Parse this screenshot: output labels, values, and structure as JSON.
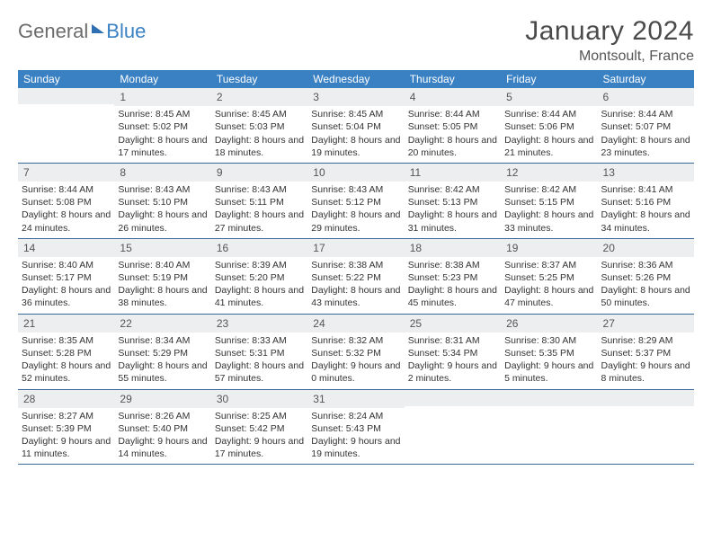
{
  "logo": {
    "text1": "General",
    "text2": "Blue"
  },
  "title": "January 2024",
  "location": "Montsoult, France",
  "colors": {
    "header_bar": "#3a81c4",
    "daynum_bg": "#eceef0",
    "week_border": "#3a6a9a",
    "text": "#333333",
    "title_text": "#4a4a4a"
  },
  "dow": [
    "Sunday",
    "Monday",
    "Tuesday",
    "Wednesday",
    "Thursday",
    "Friday",
    "Saturday"
  ],
  "weeks": [
    [
      {
        "n": "",
        "lines": []
      },
      {
        "n": "1",
        "lines": [
          "Sunrise: 8:45 AM",
          "Sunset: 5:02 PM",
          "Daylight: 8 hours and 17 minutes."
        ]
      },
      {
        "n": "2",
        "lines": [
          "Sunrise: 8:45 AM",
          "Sunset: 5:03 PM",
          "Daylight: 8 hours and 18 minutes."
        ]
      },
      {
        "n": "3",
        "lines": [
          "Sunrise: 8:45 AM",
          "Sunset: 5:04 PM",
          "Daylight: 8 hours and 19 minutes."
        ]
      },
      {
        "n": "4",
        "lines": [
          "Sunrise: 8:44 AM",
          "Sunset: 5:05 PM",
          "Daylight: 8 hours and 20 minutes."
        ]
      },
      {
        "n": "5",
        "lines": [
          "Sunrise: 8:44 AM",
          "Sunset: 5:06 PM",
          "Daylight: 8 hours and 21 minutes."
        ]
      },
      {
        "n": "6",
        "lines": [
          "Sunrise: 8:44 AM",
          "Sunset: 5:07 PM",
          "Daylight: 8 hours and 23 minutes."
        ]
      }
    ],
    [
      {
        "n": "7",
        "lines": [
          "Sunrise: 8:44 AM",
          "Sunset: 5:08 PM",
          "Daylight: 8 hours and 24 minutes."
        ]
      },
      {
        "n": "8",
        "lines": [
          "Sunrise: 8:43 AM",
          "Sunset: 5:10 PM",
          "Daylight: 8 hours and 26 minutes."
        ]
      },
      {
        "n": "9",
        "lines": [
          "Sunrise: 8:43 AM",
          "Sunset: 5:11 PM",
          "Daylight: 8 hours and 27 minutes."
        ]
      },
      {
        "n": "10",
        "lines": [
          "Sunrise: 8:43 AM",
          "Sunset: 5:12 PM",
          "Daylight: 8 hours and 29 minutes."
        ]
      },
      {
        "n": "11",
        "lines": [
          "Sunrise: 8:42 AM",
          "Sunset: 5:13 PM",
          "Daylight: 8 hours and 31 minutes."
        ]
      },
      {
        "n": "12",
        "lines": [
          "Sunrise: 8:42 AM",
          "Sunset: 5:15 PM",
          "Daylight: 8 hours and 33 minutes."
        ]
      },
      {
        "n": "13",
        "lines": [
          "Sunrise: 8:41 AM",
          "Sunset: 5:16 PM",
          "Daylight: 8 hours and 34 minutes."
        ]
      }
    ],
    [
      {
        "n": "14",
        "lines": [
          "Sunrise: 8:40 AM",
          "Sunset: 5:17 PM",
          "Daylight: 8 hours and 36 minutes."
        ]
      },
      {
        "n": "15",
        "lines": [
          "Sunrise: 8:40 AM",
          "Sunset: 5:19 PM",
          "Daylight: 8 hours and 38 minutes."
        ]
      },
      {
        "n": "16",
        "lines": [
          "Sunrise: 8:39 AM",
          "Sunset: 5:20 PM",
          "Daylight: 8 hours and 41 minutes."
        ]
      },
      {
        "n": "17",
        "lines": [
          "Sunrise: 8:38 AM",
          "Sunset: 5:22 PM",
          "Daylight: 8 hours and 43 minutes."
        ]
      },
      {
        "n": "18",
        "lines": [
          "Sunrise: 8:38 AM",
          "Sunset: 5:23 PM",
          "Daylight: 8 hours and 45 minutes."
        ]
      },
      {
        "n": "19",
        "lines": [
          "Sunrise: 8:37 AM",
          "Sunset: 5:25 PM",
          "Daylight: 8 hours and 47 minutes."
        ]
      },
      {
        "n": "20",
        "lines": [
          "Sunrise: 8:36 AM",
          "Sunset: 5:26 PM",
          "Daylight: 8 hours and 50 minutes."
        ]
      }
    ],
    [
      {
        "n": "21",
        "lines": [
          "Sunrise: 8:35 AM",
          "Sunset: 5:28 PM",
          "Daylight: 8 hours and 52 minutes."
        ]
      },
      {
        "n": "22",
        "lines": [
          "Sunrise: 8:34 AM",
          "Sunset: 5:29 PM",
          "Daylight: 8 hours and 55 minutes."
        ]
      },
      {
        "n": "23",
        "lines": [
          "Sunrise: 8:33 AM",
          "Sunset: 5:31 PM",
          "Daylight: 8 hours and 57 minutes."
        ]
      },
      {
        "n": "24",
        "lines": [
          "Sunrise: 8:32 AM",
          "Sunset: 5:32 PM",
          "Daylight: 9 hours and 0 minutes."
        ]
      },
      {
        "n": "25",
        "lines": [
          "Sunrise: 8:31 AM",
          "Sunset: 5:34 PM",
          "Daylight: 9 hours and 2 minutes."
        ]
      },
      {
        "n": "26",
        "lines": [
          "Sunrise: 8:30 AM",
          "Sunset: 5:35 PM",
          "Daylight: 9 hours and 5 minutes."
        ]
      },
      {
        "n": "27",
        "lines": [
          "Sunrise: 8:29 AM",
          "Sunset: 5:37 PM",
          "Daylight: 9 hours and 8 minutes."
        ]
      }
    ],
    [
      {
        "n": "28",
        "lines": [
          "Sunrise: 8:27 AM",
          "Sunset: 5:39 PM",
          "Daylight: 9 hours and 11 minutes."
        ]
      },
      {
        "n": "29",
        "lines": [
          "Sunrise: 8:26 AM",
          "Sunset: 5:40 PM",
          "Daylight: 9 hours and 14 minutes."
        ]
      },
      {
        "n": "30",
        "lines": [
          "Sunrise: 8:25 AM",
          "Sunset: 5:42 PM",
          "Daylight: 9 hours and 17 minutes."
        ]
      },
      {
        "n": "31",
        "lines": [
          "Sunrise: 8:24 AM",
          "Sunset: 5:43 PM",
          "Daylight: 9 hours and 19 minutes."
        ]
      },
      {
        "n": "",
        "lines": []
      },
      {
        "n": "",
        "lines": []
      },
      {
        "n": "",
        "lines": []
      }
    ]
  ]
}
